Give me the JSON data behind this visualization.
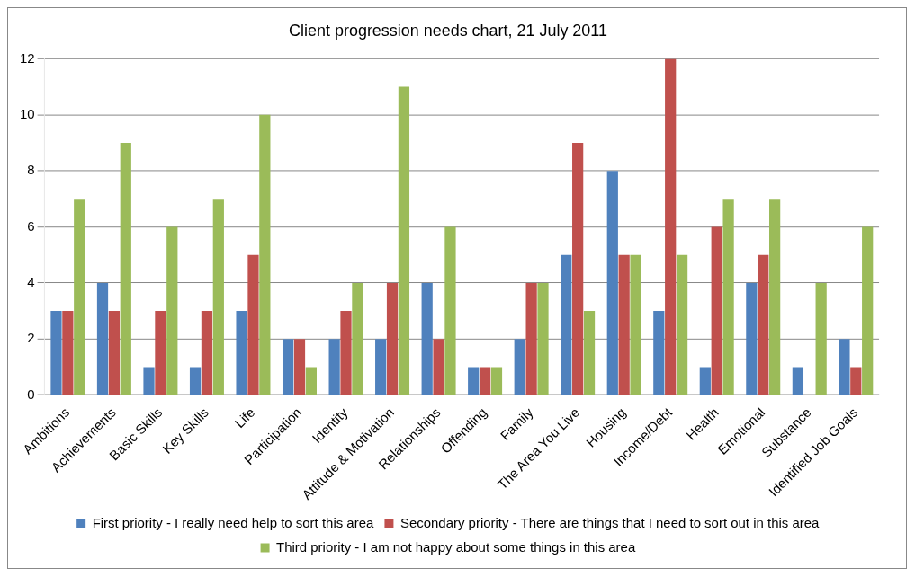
{
  "chart_data": {
    "type": "bar",
    "title": "Client progression needs chart, 21 July 2011",
    "categories": [
      "Ambitions",
      "Achievements",
      "Basic Skills",
      "Key Skills",
      "Life",
      "Participation",
      "Identity",
      "Attitude & Motivation",
      "Relationships",
      "Offending",
      "Family",
      "The Area You Live",
      "Housing",
      "Income/Debt",
      "Health",
      "Emotional",
      "Substance",
      "Identified Job Goals"
    ],
    "series": [
      {
        "name": "First priority - I really need help to sort this area",
        "color": "#4f81bd",
        "values": [
          3,
          4,
          1,
          1,
          3,
          2,
          2,
          2,
          4,
          1,
          2,
          5,
          8,
          3,
          1,
          4,
          1,
          2
        ]
      },
      {
        "name": "Secondary priority - There are things that I need to sort out in this area",
        "color": "#c0504d",
        "values": [
          3,
          3,
          3,
          3,
          5,
          2,
          3,
          4,
          2,
          1,
          4,
          9,
          5,
          12,
          6,
          5,
          0,
          1
        ]
      },
      {
        "name": "Third priority - I am not happy about some things in this area",
        "color": "#9bbb59",
        "values": [
          7,
          9,
          6,
          7,
          10,
          1,
          4,
          11,
          6,
          1,
          4,
          3,
          5,
          5,
          7,
          7,
          4,
          6
        ]
      }
    ],
    "ylim": [
      0,
      12
    ],
    "yticks": [
      0,
      2,
      4,
      6,
      8,
      10,
      12
    ],
    "grid": "y",
    "legend": "bottom"
  }
}
